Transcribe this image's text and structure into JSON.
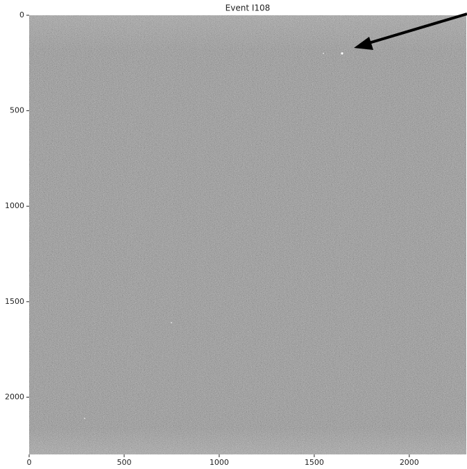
{
  "chart_data": {
    "type": "image",
    "title": "Event I108",
    "xlim": [
      0,
      2300
    ],
    "xticks": [
      0,
      500,
      1000,
      1500,
      2000
    ],
    "ylim": [
      2300,
      0
    ],
    "yticks": [
      0,
      500,
      1000,
      1500,
      2000
    ],
    "colormap": "gray"
  }
}
